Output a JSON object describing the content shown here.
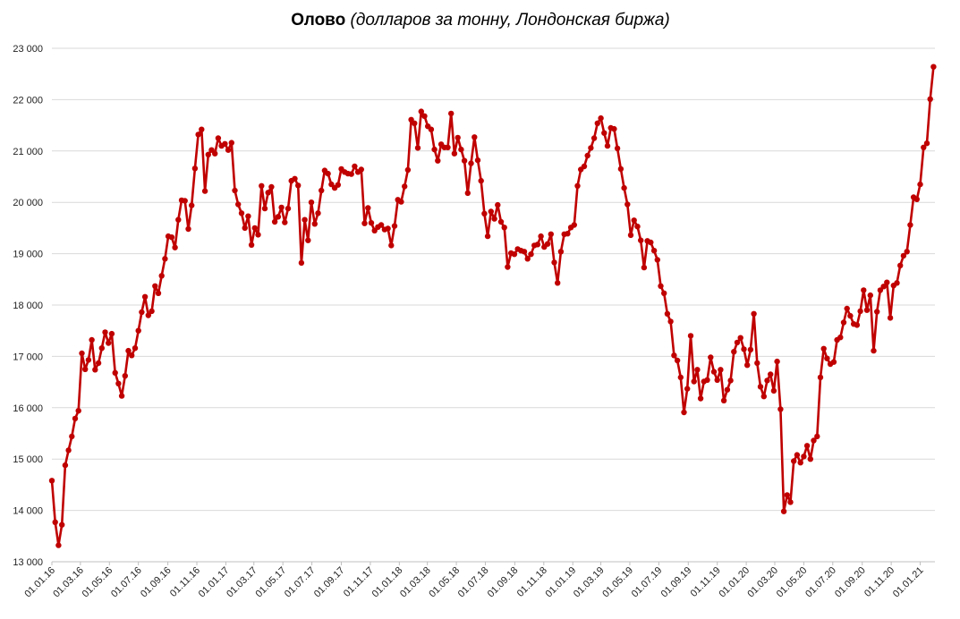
{
  "chart_data": {
    "type": "line",
    "title": "Олово",
    "subtitle": "(долларов за тонну, Лондонская биржа)",
    "xlabel": "",
    "ylabel": "",
    "ylim": [
      13000,
      23000
    ],
    "yticks": [
      13000,
      14000,
      15000,
      16000,
      17000,
      18000,
      19000,
      20000,
      21000,
      22000,
      23000
    ],
    "ytick_labels": [
      "13 000",
      "14 000",
      "15 000",
      "16 000",
      "17 000",
      "18 000",
      "19 000",
      "20 000",
      "21 000",
      "22 000",
      "23 000"
    ],
    "xlim": [
      "2016-01-01",
      "2021-02-01"
    ],
    "xticks": [
      "2016-01-01",
      "2016-03-01",
      "2016-05-01",
      "2016-07-01",
      "2016-09-01",
      "2016-11-01",
      "2017-01-01",
      "2017-03-01",
      "2017-05-01",
      "2017-07-01",
      "2017-09-01",
      "2017-11-01",
      "2018-01-01",
      "2018-03-01",
      "2018-05-01",
      "2018-07-01",
      "2018-09-01",
      "2018-11-01",
      "2019-01-01",
      "2019-03-01",
      "2019-05-01",
      "2019-07-01",
      "2019-09-01",
      "2019-11-01",
      "2020-01-01",
      "2020-03-01",
      "2020-05-01",
      "2020-07-01",
      "2020-09-01",
      "2020-11-01",
      "2021-01-01"
    ],
    "xtick_labels": [
      "01.01.16",
      "01.03.16",
      "01.05.16",
      "01.07.16",
      "01.09.16",
      "01.11.16",
      "01.01.17",
      "01.03.17",
      "01.05.17",
      "01.07.17",
      "01.09.17",
      "01.11.17",
      "01.01.18",
      "01.03.18",
      "01.05.18",
      "01.07.18",
      "01.09.18",
      "01.11.18",
      "01.01.19",
      "01.03.19",
      "01.05.19",
      "01.07.19",
      "01.09.19",
      "01.11.19",
      "01.01.20",
      "01.03.20",
      "01.05.20",
      "01.07.20",
      "01.09.20",
      "01.11.20",
      "01.01.21"
    ],
    "grid": true,
    "colors": {
      "line": "#c00000",
      "grid": "#d9d9d9"
    },
    "series": [
      {
        "name": "",
        "x": [
          "2016-01-01",
          "2016-01-08",
          "2016-01-15",
          "2016-01-22",
          "2016-01-29",
          "2016-02-05",
          "2016-02-12",
          "2016-02-19",
          "2016-02-26",
          "2016-03-04",
          "2016-03-11",
          "2016-03-18",
          "2016-03-25",
          "2016-04-01",
          "2016-04-08",
          "2016-04-15",
          "2016-04-22",
          "2016-04-29",
          "2016-05-06",
          "2016-05-13",
          "2016-05-20",
          "2016-05-27",
          "2016-06-03",
          "2016-06-10",
          "2016-06-17",
          "2016-06-24",
          "2016-07-01",
          "2016-07-08",
          "2016-07-15",
          "2016-07-22",
          "2016-07-29",
          "2016-08-05",
          "2016-08-12",
          "2016-08-19",
          "2016-08-26",
          "2016-09-02",
          "2016-09-09",
          "2016-09-16",
          "2016-09-23",
          "2016-09-30",
          "2016-10-07",
          "2016-10-14",
          "2016-10-21",
          "2016-10-28",
          "2016-11-04",
          "2016-11-11",
          "2016-11-18",
          "2016-11-25",
          "2016-12-02",
          "2016-12-09",
          "2016-12-16",
          "2016-12-23",
          "2016-12-30",
          "2017-01-06",
          "2017-01-13",
          "2017-01-20",
          "2017-01-27",
          "2017-02-03",
          "2017-02-10",
          "2017-02-17",
          "2017-02-24",
          "2017-03-03",
          "2017-03-10",
          "2017-03-17",
          "2017-03-24",
          "2017-03-31",
          "2017-04-07",
          "2017-04-14",
          "2017-04-21",
          "2017-04-28",
          "2017-05-05",
          "2017-05-12",
          "2017-05-19",
          "2017-05-26",
          "2017-06-02",
          "2017-06-09",
          "2017-06-16",
          "2017-06-23",
          "2017-06-30",
          "2017-07-07",
          "2017-07-14",
          "2017-07-21",
          "2017-07-28",
          "2017-08-04",
          "2017-08-11",
          "2017-08-18",
          "2017-08-25",
          "2017-09-01",
          "2017-09-08",
          "2017-09-15",
          "2017-09-22",
          "2017-09-29",
          "2017-10-06",
          "2017-10-13",
          "2017-10-20",
          "2017-10-27",
          "2017-11-03",
          "2017-11-10",
          "2017-11-17",
          "2017-11-24",
          "2017-12-01",
          "2017-12-08",
          "2017-12-15",
          "2017-12-22",
          "2017-12-29",
          "2018-01-05",
          "2018-01-12",
          "2018-01-19",
          "2018-01-26",
          "2018-02-02",
          "2018-02-09",
          "2018-02-16",
          "2018-02-23",
          "2018-03-02",
          "2018-03-09",
          "2018-03-16",
          "2018-03-23",
          "2018-03-30",
          "2018-04-06",
          "2018-04-13",
          "2018-04-20",
          "2018-04-27",
          "2018-05-04",
          "2018-05-11",
          "2018-05-18",
          "2018-05-25",
          "2018-06-01",
          "2018-06-08",
          "2018-06-15",
          "2018-06-22",
          "2018-06-29",
          "2018-07-06",
          "2018-07-13",
          "2018-07-20",
          "2018-07-27",
          "2018-08-03",
          "2018-08-10",
          "2018-08-17",
          "2018-08-24",
          "2018-08-31",
          "2018-09-07",
          "2018-09-14",
          "2018-09-21",
          "2018-09-28",
          "2018-10-05",
          "2018-10-12",
          "2018-10-19",
          "2018-10-26",
          "2018-11-02",
          "2018-11-09",
          "2018-11-16",
          "2018-11-23",
          "2018-11-30",
          "2018-12-07",
          "2018-12-14",
          "2018-12-21",
          "2018-12-28",
          "2019-01-04",
          "2019-01-11",
          "2019-01-18",
          "2019-01-25",
          "2019-02-01",
          "2019-02-08",
          "2019-02-15",
          "2019-02-22",
          "2019-03-01",
          "2019-03-08",
          "2019-03-15",
          "2019-03-22",
          "2019-03-29",
          "2019-04-05",
          "2019-04-12",
          "2019-04-19",
          "2019-04-26",
          "2019-05-03",
          "2019-05-10",
          "2019-05-17",
          "2019-05-24",
          "2019-05-31",
          "2019-06-07",
          "2019-06-14",
          "2019-06-21",
          "2019-06-28",
          "2019-07-05",
          "2019-07-12",
          "2019-07-19",
          "2019-07-26",
          "2019-08-02",
          "2019-08-09",
          "2019-08-16",
          "2019-08-23",
          "2019-08-30",
          "2019-09-06",
          "2019-09-13",
          "2019-09-20",
          "2019-09-27",
          "2019-10-04",
          "2019-10-11",
          "2019-10-18",
          "2019-10-25",
          "2019-11-01",
          "2019-11-08",
          "2019-11-15",
          "2019-11-22",
          "2019-11-29",
          "2019-12-06",
          "2019-12-13",
          "2019-12-20",
          "2019-12-27",
          "2020-01-03",
          "2020-01-10",
          "2020-01-17",
          "2020-01-24",
          "2020-01-31",
          "2020-02-07",
          "2020-02-14",
          "2020-02-21",
          "2020-02-28",
          "2020-03-06",
          "2020-03-13",
          "2020-03-20",
          "2020-03-27",
          "2020-04-03",
          "2020-04-10",
          "2020-04-17",
          "2020-04-24",
          "2020-05-01",
          "2020-05-08",
          "2020-05-15",
          "2020-05-22",
          "2020-05-29",
          "2020-06-05",
          "2020-06-12",
          "2020-06-19",
          "2020-06-26",
          "2020-07-03",
          "2020-07-10",
          "2020-07-17",
          "2020-07-24",
          "2020-07-31",
          "2020-08-07",
          "2020-08-14",
          "2020-08-21",
          "2020-08-28",
          "2020-09-04",
          "2020-09-11",
          "2020-09-18",
          "2020-09-25",
          "2020-10-02",
          "2020-10-09",
          "2020-10-16",
          "2020-10-23",
          "2020-10-30",
          "2020-11-06",
          "2020-11-13",
          "2020-11-20",
          "2020-11-27",
          "2020-12-04",
          "2020-12-11",
          "2020-12-18",
          "2020-12-25",
          "2021-01-01",
          "2021-01-08",
          "2021-01-15",
          "2021-01-22",
          "2021-01-29"
        ],
        "values": [
          14580,
          13770,
          13320,
          13720,
          14880,
          15170,
          15440,
          15790,
          15940,
          17060,
          16750,
          16930,
          17320,
          16740,
          16870,
          17160,
          17470,
          17260,
          17440,
          16680,
          16470,
          16230,
          16620,
          17110,
          17020,
          17160,
          17500,
          17860,
          18160,
          17800,
          17880,
          18370,
          18230,
          18570,
          18900,
          19340,
          19320,
          19120,
          19660,
          20040,
          20030,
          19480,
          19940,
          20660,
          21320,
          21420,
          20220,
          20930,
          21020,
          20950,
          21250,
          21100,
          21140,
          21020,
          21160,
          20230,
          19960,
          19790,
          19500,
          19730,
          19170,
          19500,
          19370,
          20320,
          19880,
          20190,
          20300,
          19620,
          19720,
          19900,
          19610,
          19880,
          20420,
          20460,
          20330,
          18820,
          19660,
          19260,
          20000,
          19580,
          19790,
          20230,
          20620,
          20560,
          20350,
          20280,
          20340,
          20650,
          20590,
          20560,
          20550,
          20700,
          20590,
          20640,
          19590,
          19890,
          19600,
          19450,
          19520,
          19560,
          19470,
          19490,
          19160,
          19540,
          20050,
          20010,
          20310,
          20630,
          21610,
          21540,
          21060,
          21770,
          21680,
          21480,
          21420,
          21030,
          20810,
          21130,
          21070,
          21070,
          21730,
          20950,
          21260,
          21030,
          20810,
          20180,
          20760,
          21270,
          20820,
          20420,
          19780,
          19340,
          19820,
          19680,
          19950,
          19620,
          19510,
          18740,
          19010,
          18990,
          19090,
          19060,
          19040,
          18900,
          18990,
          19160,
          19180,
          19340,
          19130,
          19190,
          19380,
          18830,
          18430,
          19040,
          19380,
          19390,
          19510,
          19560,
          20320,
          20640,
          20700,
          20910,
          21060,
          21250,
          21540,
          21640,
          21350,
          21100,
          21450,
          21430,
          21050,
          20650,
          20280,
          19960,
          19360,
          19650,
          19530,
          19260,
          18730,
          19250,
          19220,
          19060,
          18880,
          18370,
          18230,
          17830,
          17680,
          17020,
          16920,
          16590,
          15910,
          16370,
          17400,
          16510,
          16740,
          16180,
          16510,
          16540,
          16980,
          16700,
          16540,
          16740,
          16140,
          16350,
          16530,
          17090,
          17270,
          17360,
          17140,
          16830,
          17130,
          17830,
          16870,
          16410,
          16220,
          16530,
          16650,
          16330,
          16900,
          15970,
          13980,
          14300,
          14160,
          14960,
          15080,
          14930,
          15050,
          15260,
          15000,
          15360,
          15440,
          16590,
          17150,
          16960,
          16850,
          16890,
          17320,
          17370,
          17660,
          17930,
          17790,
          17630,
          17610,
          17880,
          18290,
          17900,
          18190,
          17110,
          17870,
          18290,
          18360,
          18440,
          17750,
          18380,
          18430,
          18770,
          18960,
          19040,
          19560,
          20100,
          20060,
          20350,
          21070,
          21150,
          22010,
          22640
        ]
      }
    ]
  }
}
